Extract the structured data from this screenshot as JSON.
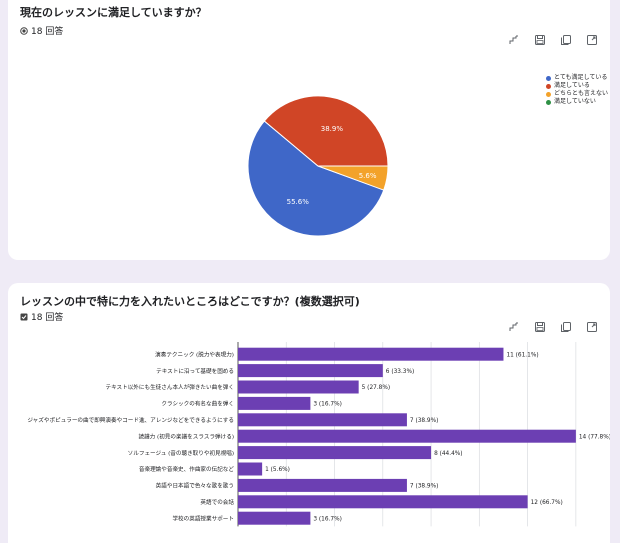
{
  "q1": {
    "title": "現在のレッスンに満足していますか？",
    "responses": "18 回答",
    "toolbar": [
      "chart-icon",
      "save-icon",
      "copy-icon",
      "expand-icon"
    ]
  },
  "q2": {
    "title": "レッスンの中で特に力を入れたいところはどこですか？(複数選択可)",
    "responses": "18 回答",
    "toolbar": [
      "chart-icon",
      "save-icon",
      "copy-icon",
      "expand-icon"
    ]
  },
  "colors": {
    "blue": "#3f67c8",
    "red": "#d04526",
    "orange": "#f3a22a",
    "green": "#2e9045",
    "purple": "#6c3fb3"
  },
  "chart_data": [
    {
      "type": "pie",
      "title": "現在のレッスンに満足していますか？",
      "slices": [
        {
          "label": "とても満足している",
          "percent": 55.6,
          "color": "#3f67c8"
        },
        {
          "label": "満足している",
          "percent": 38.9,
          "color": "#d04526"
        },
        {
          "label": "どちらとも言えない",
          "percent": 5.6,
          "color": "#f3a22a"
        },
        {
          "label": "満足していない",
          "percent": 0,
          "color": "#2e9045"
        }
      ],
      "legend_position": "top-right"
    },
    {
      "type": "bar",
      "orientation": "horizontal",
      "title": "レッスンの中で特に力を入れたいところはどこですか？(複数選択可)",
      "categories": [
        "演奏テクニック (脱力や表現力)",
        "テキストに沿って基礎を固める",
        "テキスト以外にも生徒さん本人が弾きたい曲を弾く",
        "クラシックの有名な曲を弾く",
        "ジャズやポピュラーの曲で即興演奏やコード進、アレンジなどをできるようにする",
        "読譜力 (初見の楽譜をスラスラ弾ける)",
        "ソルフェージュ (音の聴き取りや初見視唱)",
        "音楽理論や音楽史、作曲家の伝記など",
        "英語や日本語で色々な歌を歌う",
        "英語での会話",
        "学校の英語授業サポート"
      ],
      "values": [
        11,
        6,
        5,
        3,
        7,
        14,
        8,
        1,
        7,
        12,
        3
      ],
      "value_labels": [
        "11 (61.1%)",
        "6 (33.3%)",
        "5 (27.8%)",
        "3 (16.7%)",
        "7 (38.9%)",
        "14 (77.8%)",
        "8 (44.4%)",
        "1 (5.6%)",
        "7 (38.9%)",
        "12 (66.7%)",
        "3 (16.7%)"
      ],
      "xlim": [
        0,
        15
      ],
      "grid": true,
      "color": "#6c3fb3"
    }
  ]
}
